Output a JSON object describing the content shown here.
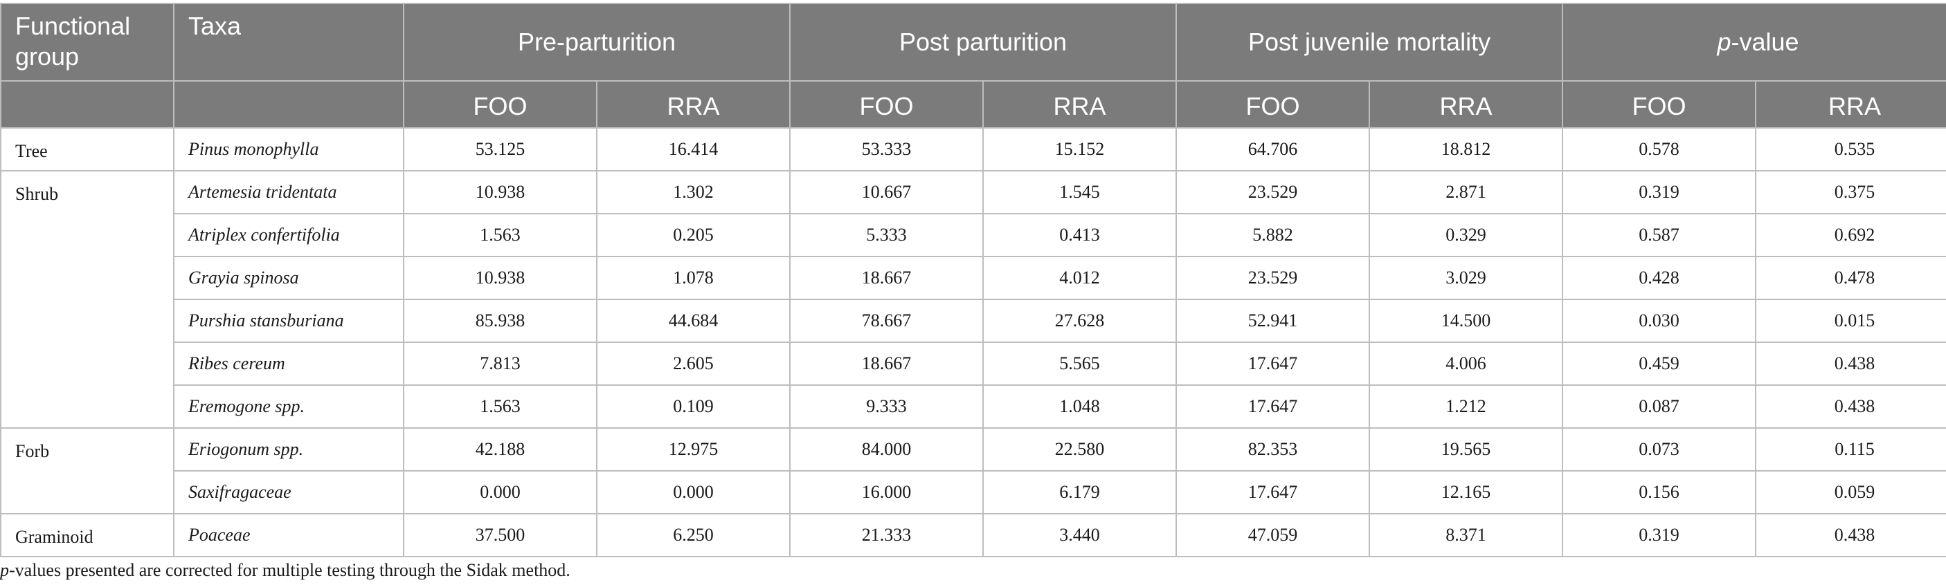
{
  "table": {
    "headers": {
      "functional_group": "Functional group",
      "taxa": "Taxa",
      "periods": [
        "Pre-parturition",
        "Post parturition",
        "Post juvenile mortality"
      ],
      "p_value_italic": "p",
      "p_value_rest": "-value",
      "sub": [
        "FOO",
        "RRA",
        "FOO",
        "RRA",
        "FOO",
        "RRA",
        "FOO",
        "RRA"
      ]
    },
    "groups": [
      {
        "name": "Tree",
        "rows": [
          {
            "taxa": "Pinus monophylla",
            "values": [
              "53.125",
              "16.414",
              "53.333",
              "15.152",
              "64.706",
              "18.812",
              "0.578",
              "0.535"
            ]
          }
        ]
      },
      {
        "name": "Shrub",
        "rows": [
          {
            "taxa": "Artemesia tridentata",
            "values": [
              "10.938",
              "1.302",
              "10.667",
              "1.545",
              "23.529",
              "2.871",
              "0.319",
              "0.375"
            ]
          },
          {
            "taxa": "Atriplex confertifolia",
            "values": [
              "1.563",
              "0.205",
              "5.333",
              "0.413",
              "5.882",
              "0.329",
              "0.587",
              "0.692"
            ]
          },
          {
            "taxa": "Grayia spinosa",
            "values": [
              "10.938",
              "1.078",
              "18.667",
              "4.012",
              "23.529",
              "3.029",
              "0.428",
              "0.478"
            ]
          },
          {
            "taxa": "Purshia stansburiana",
            "values": [
              "85.938",
              "44.684",
              "78.667",
              "27.628",
              "52.941",
              "14.500",
              "0.030",
              "0.015"
            ]
          },
          {
            "taxa": "Ribes cereum",
            "values": [
              "7.813",
              "2.605",
              "18.667",
              "5.565",
              "17.647",
              "4.006",
              "0.459",
              "0.438"
            ]
          },
          {
            "taxa": "Eremogone spp.",
            "values": [
              "1.563",
              "0.109",
              "9.333",
              "1.048",
              "17.647",
              "1.212",
              "0.087",
              "0.438"
            ]
          }
        ]
      },
      {
        "name": "Forb",
        "rows": [
          {
            "taxa": "Eriogonum spp.",
            "values": [
              "42.188",
              "12.975",
              "84.000",
              "22.580",
              "82.353",
              "19.565",
              "0.073",
              "0.115"
            ]
          },
          {
            "taxa": "Saxifragaceae",
            "values": [
              "0.000",
              "0.000",
              "16.000",
              "6.179",
              "17.647",
              "12.165",
              "0.156",
              "0.059"
            ]
          }
        ]
      },
      {
        "name": "Graminoid",
        "rows": [
          {
            "taxa": "Poaceae",
            "values": [
              "37.500",
              "6.250",
              "21.333",
              "3.440",
              "47.059",
              "8.371",
              "0.319",
              "0.438"
            ]
          }
        ]
      }
    ]
  },
  "footnote": {
    "p_symbol": "p",
    "text": "-values presented are corrected for multiple testing through the Sidak method."
  }
}
